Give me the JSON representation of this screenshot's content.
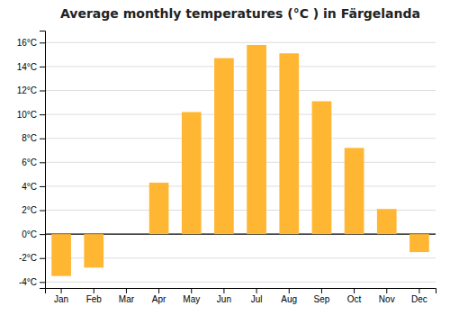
{
  "chart_data": {
    "type": "bar",
    "title": "Average monthly temperatures (°C ) in Färgelanda",
    "categories": [
      "Jan",
      "Feb",
      "Mar",
      "Apr",
      "May",
      "Jun",
      "Jul",
      "Aug",
      "Sep",
      "Oct",
      "Nov",
      "Dec"
    ],
    "values": [
      -3.5,
      -2.8,
      0.0,
      4.3,
      10.2,
      14.7,
      15.8,
      15.1,
      11.1,
      7.2,
      2.1,
      -1.5
    ],
    "color": "#FFB733",
    "ylim": [
      -4.5,
      17
    ],
    "yticks": [
      {
        "value": -4,
        "label": "-4°C"
      },
      {
        "value": -2,
        "label": "-2°C"
      },
      {
        "value": 0,
        "label": "0°C"
      },
      {
        "value": 2,
        "label": "2°C"
      },
      {
        "value": 4,
        "label": "4°C"
      },
      {
        "value": 6,
        "label": "6°C"
      },
      {
        "value": 8,
        "label": "8°C"
      },
      {
        "value": 10,
        "label": "10°C"
      },
      {
        "value": 12,
        "label": "12°C"
      },
      {
        "value": 14,
        "label": "14°C"
      },
      {
        "value": 16,
        "label": "16°C"
      }
    ],
    "grid": true
  }
}
